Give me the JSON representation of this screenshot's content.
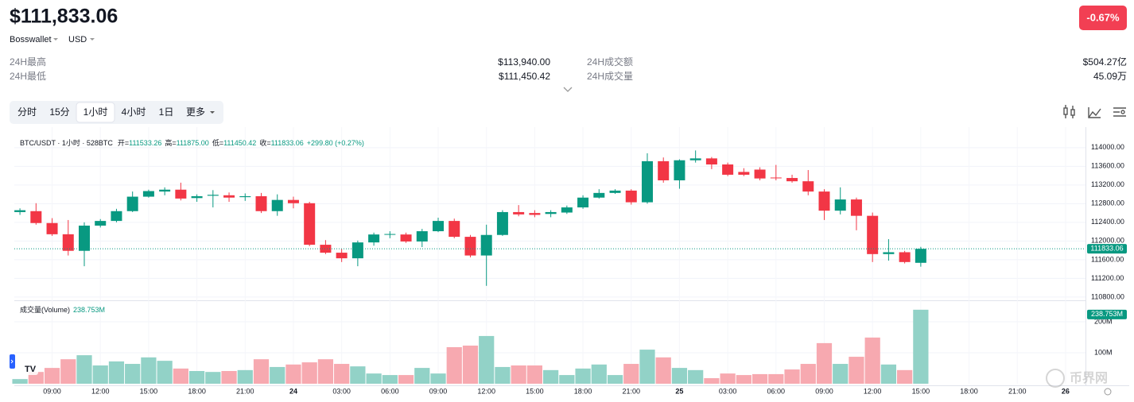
{
  "header": {
    "price": "$111,833.06",
    "wallet": "Bosswallet",
    "currency": "USD",
    "change": "-0.67%"
  },
  "stats": [
    {
      "label": "24H最高",
      "value": "$113,940.00"
    },
    {
      "label": "24H最低",
      "value": "$111,450.42"
    },
    {
      "label": "24H成交额",
      "value": "$504.27亿"
    },
    {
      "label": "24H成交量",
      "value": "45.09万"
    }
  ],
  "tabs": [
    {
      "label": "分时"
    },
    {
      "label": "15分"
    },
    {
      "label": "1小时",
      "active": true
    },
    {
      "label": "4小时"
    },
    {
      "label": "1日"
    },
    {
      "label": "更多"
    }
  ],
  "watermark": "币界网",
  "chart_data": {
    "type": "candlestick",
    "title": "BTC/USDT · 1小时 · 528BTC",
    "legend_items": [
      {
        "label": "开=",
        "value": "111533.26"
      },
      {
        "label": "高=",
        "value": "111875.00"
      },
      {
        "label": "低=",
        "value": "111450.42"
      },
      {
        "label": "收=",
        "value": "111833.06"
      }
    ],
    "legend_change": "+299.80 (+0.27%)",
    "volume_title": "成交量(Volume)",
    "last_volume_label": "238.753M",
    "last_price": 111833.06,
    "up_color": "#089981",
    "down_color": "#f23645",
    "volume_up_color": "#92d2c7",
    "volume_down_color": "#f7a9b0",
    "grid": true,
    "xlim": [
      -0.35,
      66.24
    ],
    "xticks": [
      {
        "value": 2,
        "label": "09:00"
      },
      {
        "value": 5,
        "label": "12:00"
      },
      {
        "value": 8,
        "label": "15:00"
      },
      {
        "value": 11,
        "label": "18:00"
      },
      {
        "value": 14,
        "label": "21:00"
      },
      {
        "value": 17,
        "label": "24"
      },
      {
        "value": 20,
        "label": "03:00"
      },
      {
        "value": 23,
        "label": "06:00"
      },
      {
        "value": 26,
        "label": "09:00"
      },
      {
        "value": 29,
        "label": "12:00"
      },
      {
        "value": 32,
        "label": "15:00"
      },
      {
        "value": 35,
        "label": "18:00"
      },
      {
        "value": 38,
        "label": "21:00"
      },
      {
        "value": 41,
        "label": "25"
      },
      {
        "value": 44,
        "label": "03:00"
      },
      {
        "value": 47,
        "label": "06:00"
      },
      {
        "value": 50,
        "label": "09:00"
      },
      {
        "value": 53,
        "label": "12:00"
      },
      {
        "value": 56,
        "label": "15:00"
      },
      {
        "value": 59,
        "label": "18:00"
      },
      {
        "value": 62,
        "label": "21:00"
      },
      {
        "value": 65,
        "label": "26"
      }
    ],
    "ylim": [
      110730,
      114440
    ],
    "yticks": [
      {
        "value": 110800,
        "label": "110800.00"
      },
      {
        "value": 111200,
        "label": "111200.00"
      },
      {
        "value": 111600,
        "label": "111600.00"
      },
      {
        "value": 112000,
        "label": "112000.00"
      },
      {
        "value": 112400,
        "label": "112400.00"
      },
      {
        "value": 112800,
        "label": "112800.00"
      },
      {
        "value": 113200,
        "label": "113200.00"
      },
      {
        "value": 113600,
        "label": "113600.00"
      },
      {
        "value": 114000,
        "label": "114000.00"
      }
    ],
    "y2lim": [
      0,
      264
    ],
    "y2ticks": [
      {
        "value": 100,
        "label": "100M"
      },
      {
        "value": 200,
        "label": "200M"
      }
    ],
    "open": [
      112620,
      112640,
      112385,
      112145,
      111790,
      112330,
      112430,
      112640,
      112950,
      113060,
      113100,
      112920,
      112970,
      112980,
      112940,
      112960,
      112640,
      112880,
      112810,
      111920,
      111750,
      111630,
      111970,
      112140,
      112140,
      111990,
      112210,
      112430,
      112090,
      111690,
      112130,
      112620,
      112600,
      112580,
      112610,
      112720,
      112930,
      113030,
      113080,
      112830,
      113710,
      113300,
      113730,
      113770,
      113640,
      113480,
      113530,
      113360,
      113350,
      113280,
      113060,
      112650,
      112890,
      112540,
      111720,
      111760,
      111533.26
    ],
    "high": [
      112700,
      112810,
      112490,
      112450,
      112400,
      112470,
      112690,
      113060,
      113100,
      113150,
      113250,
      113000,
      113090,
      113040,
      113020,
      113030,
      113000,
      112950,
      112840,
      112020,
      111830,
      112010,
      112180,
      112210,
      112180,
      112260,
      112500,
      112480,
      112130,
      112350,
      112660,
      112770,
      112660,
      112660,
      112760,
      112980,
      113110,
      113110,
      113110,
      113880,
      113790,
      113750,
      113940,
      113800,
      113680,
      113560,
      113580,
      113630,
      113420,
      113520,
      113110,
      113150,
      112930,
      112610,
      112040,
      111790,
      111875
    ],
    "low": [
      112560,
      112350,
      112110,
      111690,
      111460,
      112290,
      112400,
      112620,
      112930,
      112980,
      112870,
      112840,
      112720,
      112840,
      112860,
      112600,
      112540,
      112700,
      111890,
      111720,
      111550,
      111460,
      111900,
      112060,
      111960,
      111870,
      112190,
      112060,
      111650,
      111040,
      112110,
      112530,
      112510,
      112510,
      112580,
      112690,
      112910,
      113010,
      112780,
      112800,
      113250,
      113120,
      113680,
      113540,
      113390,
      113390,
      113300,
      113300,
      113250,
      112980,
      112450,
      112570,
      112230,
      111550,
      111580,
      111520,
      111450.42
    ],
    "close": [
      112660,
      112385,
      112145,
      111790,
      112330,
      112430,
      112640,
      112950,
      113070,
      113100,
      112910,
      112960,
      112990,
      112930,
      112960,
      112640,
      112880,
      112810,
      111920,
      111750,
      111630,
      111970,
      112140,
      112150,
      111990,
      112210,
      112430,
      112090,
      111690,
      112130,
      112620,
      112570,
      112560,
      112620,
      112720,
      112930,
      113030,
      113080,
      112830,
      113710,
      113300,
      113730,
      113770,
      113640,
      113420,
      113420,
      113340,
      113350,
      113280,
      113060,
      112650,
      112890,
      112540,
      111720,
      111760,
      111550,
      111833.06
    ],
    "volume": [
      15,
      38,
      51,
      79,
      92,
      59,
      72,
      64,
      85,
      74,
      49,
      41,
      38,
      41,
      44,
      79,
      54,
      62,
      69,
      79,
      64,
      56,
      33,
      28,
      28,
      51,
      33,
      118,
      123,
      154,
      54,
      59,
      59,
      44,
      28,
      49,
      62,
      28,
      64,
      110,
      85,
      51,
      44,
      18,
      33,
      28,
      31,
      31,
      46,
      64,
      131,
      64,
      87,
      149,
      62,
      44,
      238.753
    ]
  }
}
